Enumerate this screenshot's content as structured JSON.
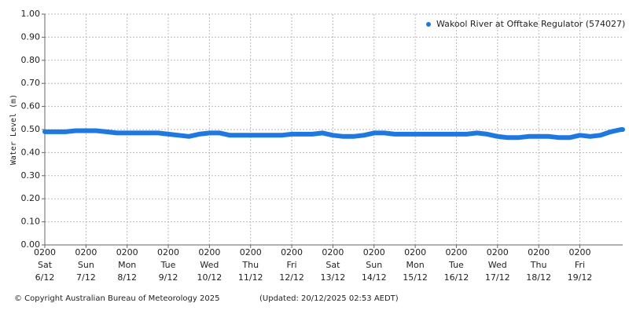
{
  "chart_data": {
    "type": "line",
    "ylabel": "Water Level (m)",
    "x": [
      "6/12 02:00",
      "6/12 08:00",
      "6/12 14:00",
      "6/12 20:00",
      "7/12 02:00",
      "7/12 08:00",
      "7/12 14:00",
      "7/12 20:00",
      "8/12 02:00",
      "8/12 08:00",
      "8/12 14:00",
      "8/12 20:00",
      "9/12 02:00",
      "9/12 08:00",
      "9/12 14:00",
      "9/12 20:00",
      "10/12 02:00",
      "10/12 08:00",
      "10/12 14:00",
      "10/12 20:00",
      "11/12 02:00",
      "11/12 08:00",
      "11/12 14:00",
      "11/12 20:00",
      "12/12 02:00",
      "12/12 08:00",
      "12/12 14:00",
      "12/12 20:00",
      "13/12 02:00",
      "13/12 08:00",
      "13/12 14:00",
      "13/12 20:00",
      "14/12 02:00",
      "14/12 08:00",
      "14/12 14:00",
      "14/12 20:00",
      "15/12 02:00",
      "15/12 08:00",
      "15/12 14:00",
      "15/12 20:00",
      "16/12 02:00",
      "16/12 08:00",
      "16/12 14:00",
      "16/12 20:00",
      "17/12 02:00",
      "17/12 08:00",
      "17/12 14:00",
      "17/12 20:00",
      "18/12 02:00",
      "18/12 08:00",
      "18/12 14:00",
      "18/12 20:00",
      "19/12 02:00",
      "19/12 08:00",
      "19/12 14:00",
      "19/12 20:00",
      "20/12 02:00",
      "20/12 03:00"
    ],
    "series": [
      {
        "name": "Wakool River at Offtake Regulator (574027)",
        "color": "#1f78e0",
        "values": [
          0.49,
          0.49,
          0.49,
          0.495,
          0.495,
          0.495,
          0.49,
          0.485,
          0.485,
          0.485,
          0.485,
          0.485,
          0.48,
          0.475,
          0.47,
          0.48,
          0.485,
          0.485,
          0.475,
          0.475,
          0.475,
          0.475,
          0.475,
          0.475,
          0.48,
          0.48,
          0.48,
          0.485,
          0.475,
          0.47,
          0.47,
          0.475,
          0.485,
          0.485,
          0.48,
          0.48,
          0.48,
          0.48,
          0.48,
          0.48,
          0.48,
          0.48,
          0.485,
          0.48,
          0.47,
          0.465,
          0.465,
          0.47,
          0.47,
          0.47,
          0.465,
          0.465,
          0.475,
          0.47,
          0.475,
          0.49,
          0.5,
          0.5
        ]
      }
    ],
    "xlim": [
      "6/12 02:00",
      "20/12 03:00"
    ],
    "xticks": [
      {
        "value": "6/12 02:00",
        "label": [
          "0200",
          "Sat",
          "6/12"
        ]
      },
      {
        "value": "7/12 02:00",
        "label": [
          "0200",
          "Sun",
          "7/12"
        ]
      },
      {
        "value": "8/12 02:00",
        "label": [
          "0200",
          "Mon",
          "8/12"
        ]
      },
      {
        "value": "9/12 02:00",
        "label": [
          "0200",
          "Tue",
          "9/12"
        ]
      },
      {
        "value": "10/12 02:00",
        "label": [
          "0200",
          "Wed",
          "10/12"
        ]
      },
      {
        "value": "11/12 02:00",
        "label": [
          "0200",
          "Thu",
          "11/12"
        ]
      },
      {
        "value": "12/12 02:00",
        "label": [
          "0200",
          "Fri",
          "12/12"
        ]
      },
      {
        "value": "13/12 02:00",
        "label": [
          "0200",
          "Sat",
          "13/12"
        ]
      },
      {
        "value": "14/12 02:00",
        "label": [
          "0200",
          "Sun",
          "14/12"
        ]
      },
      {
        "value": "15/12 02:00",
        "label": [
          "0200",
          "Mon",
          "15/12"
        ]
      },
      {
        "value": "16/12 02:00",
        "label": [
          "0200",
          "Tue",
          "16/12"
        ]
      },
      {
        "value": "17/12 02:00",
        "label": [
          "0200",
          "Wed",
          "17/12"
        ]
      },
      {
        "value": "18/12 02:00",
        "label": [
          "0200",
          "Thu",
          "18/12"
        ]
      },
      {
        "value": "19/12 02:00",
        "label": [
          "0200",
          "Fri",
          "19/12"
        ]
      }
    ],
    "ylim": [
      0,
      1
    ],
    "yticks": [
      {
        "value": 0,
        "label": "0.00"
      },
      {
        "value": 0.1,
        "label": "0.10"
      },
      {
        "value": 0.2,
        "label": "0.20"
      },
      {
        "value": 0.3,
        "label": "0.30"
      },
      {
        "value": 0.4,
        "label": "0.40"
      },
      {
        "value": 0.5,
        "label": "0.50"
      },
      {
        "value": 0.6,
        "label": "0.60"
      },
      {
        "value": 0.7,
        "label": "0.70"
      },
      {
        "value": 0.8,
        "label": "0.80"
      },
      {
        "value": 0.9,
        "label": "0.90"
      },
      {
        "value": 1,
        "label": "1.00"
      }
    ],
    "grid": true,
    "legend": "top-right",
    "copyright": "© Copyright Australian Bureau of Meteorology 2025",
    "updated": "(Updated: 20/12/2025 02:53 AEDT)"
  }
}
